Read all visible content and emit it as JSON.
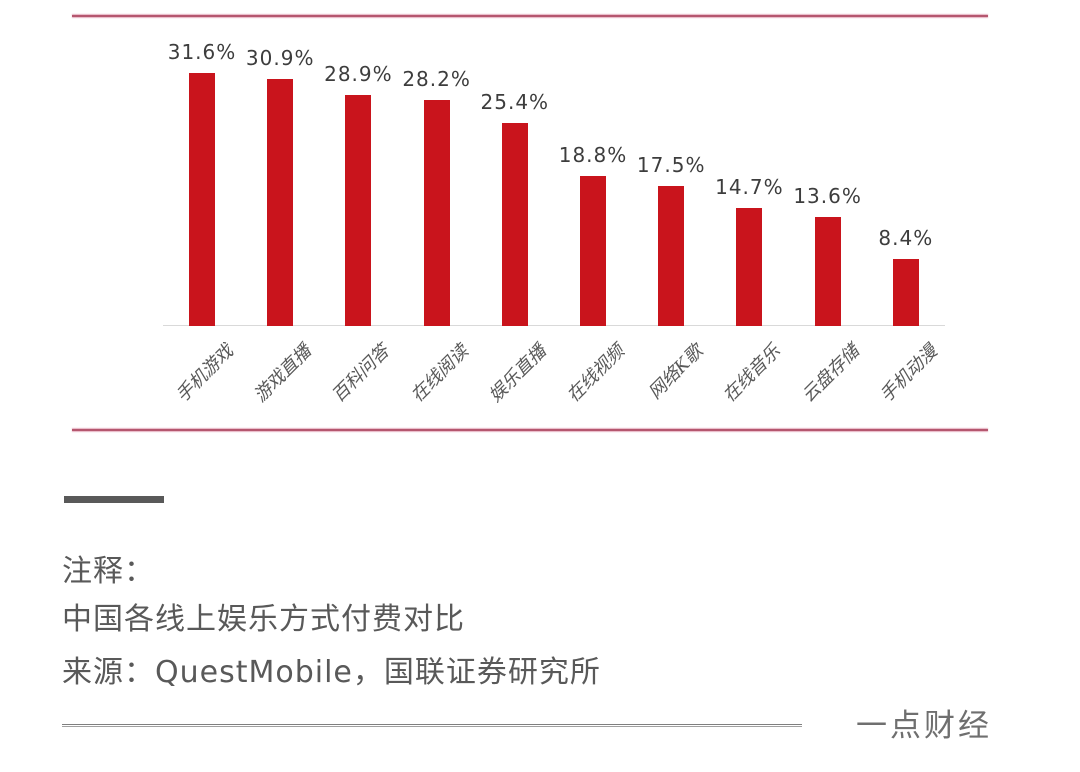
{
  "chart_data": {
    "type": "bar",
    "categories": [
      "手机游戏",
      "游戏直播",
      "百科问答",
      "在线阅读",
      "娱乐直播",
      "在线视频",
      "网络K歌",
      "在线音乐",
      "云盘存储",
      "手机动漫"
    ],
    "values": [
      31.6,
      30.9,
      28.9,
      28.2,
      25.4,
      18.8,
      17.5,
      14.7,
      13.6,
      8.4
    ],
    "value_labels": [
      "31.6%",
      "30.9%",
      "28.9%",
      "28.2%",
      "25.4%",
      "18.8%",
      "17.5%",
      "14.7%",
      "13.6%",
      "8.4%"
    ],
    "title": "中国各线上娱乐方式付费对比",
    "xlabel": "",
    "ylabel": "",
    "ylim": [
      0,
      35
    ],
    "grid": false,
    "legend": false,
    "bar_color": "#c9141c",
    "value_label_color": "#3d3d3d",
    "category_label_color": "#595959"
  },
  "notes": {
    "label": "注释：",
    "caption": "中国各线上娱乐方式付费对比",
    "source": "来源：QuestMobile，国联证券研究所"
  },
  "footer": {
    "brand": "一点财经"
  },
  "colors": {
    "divider_red": "#b5576f",
    "axis_gray": "#d9d9d9",
    "marker_gray": "#595959"
  }
}
